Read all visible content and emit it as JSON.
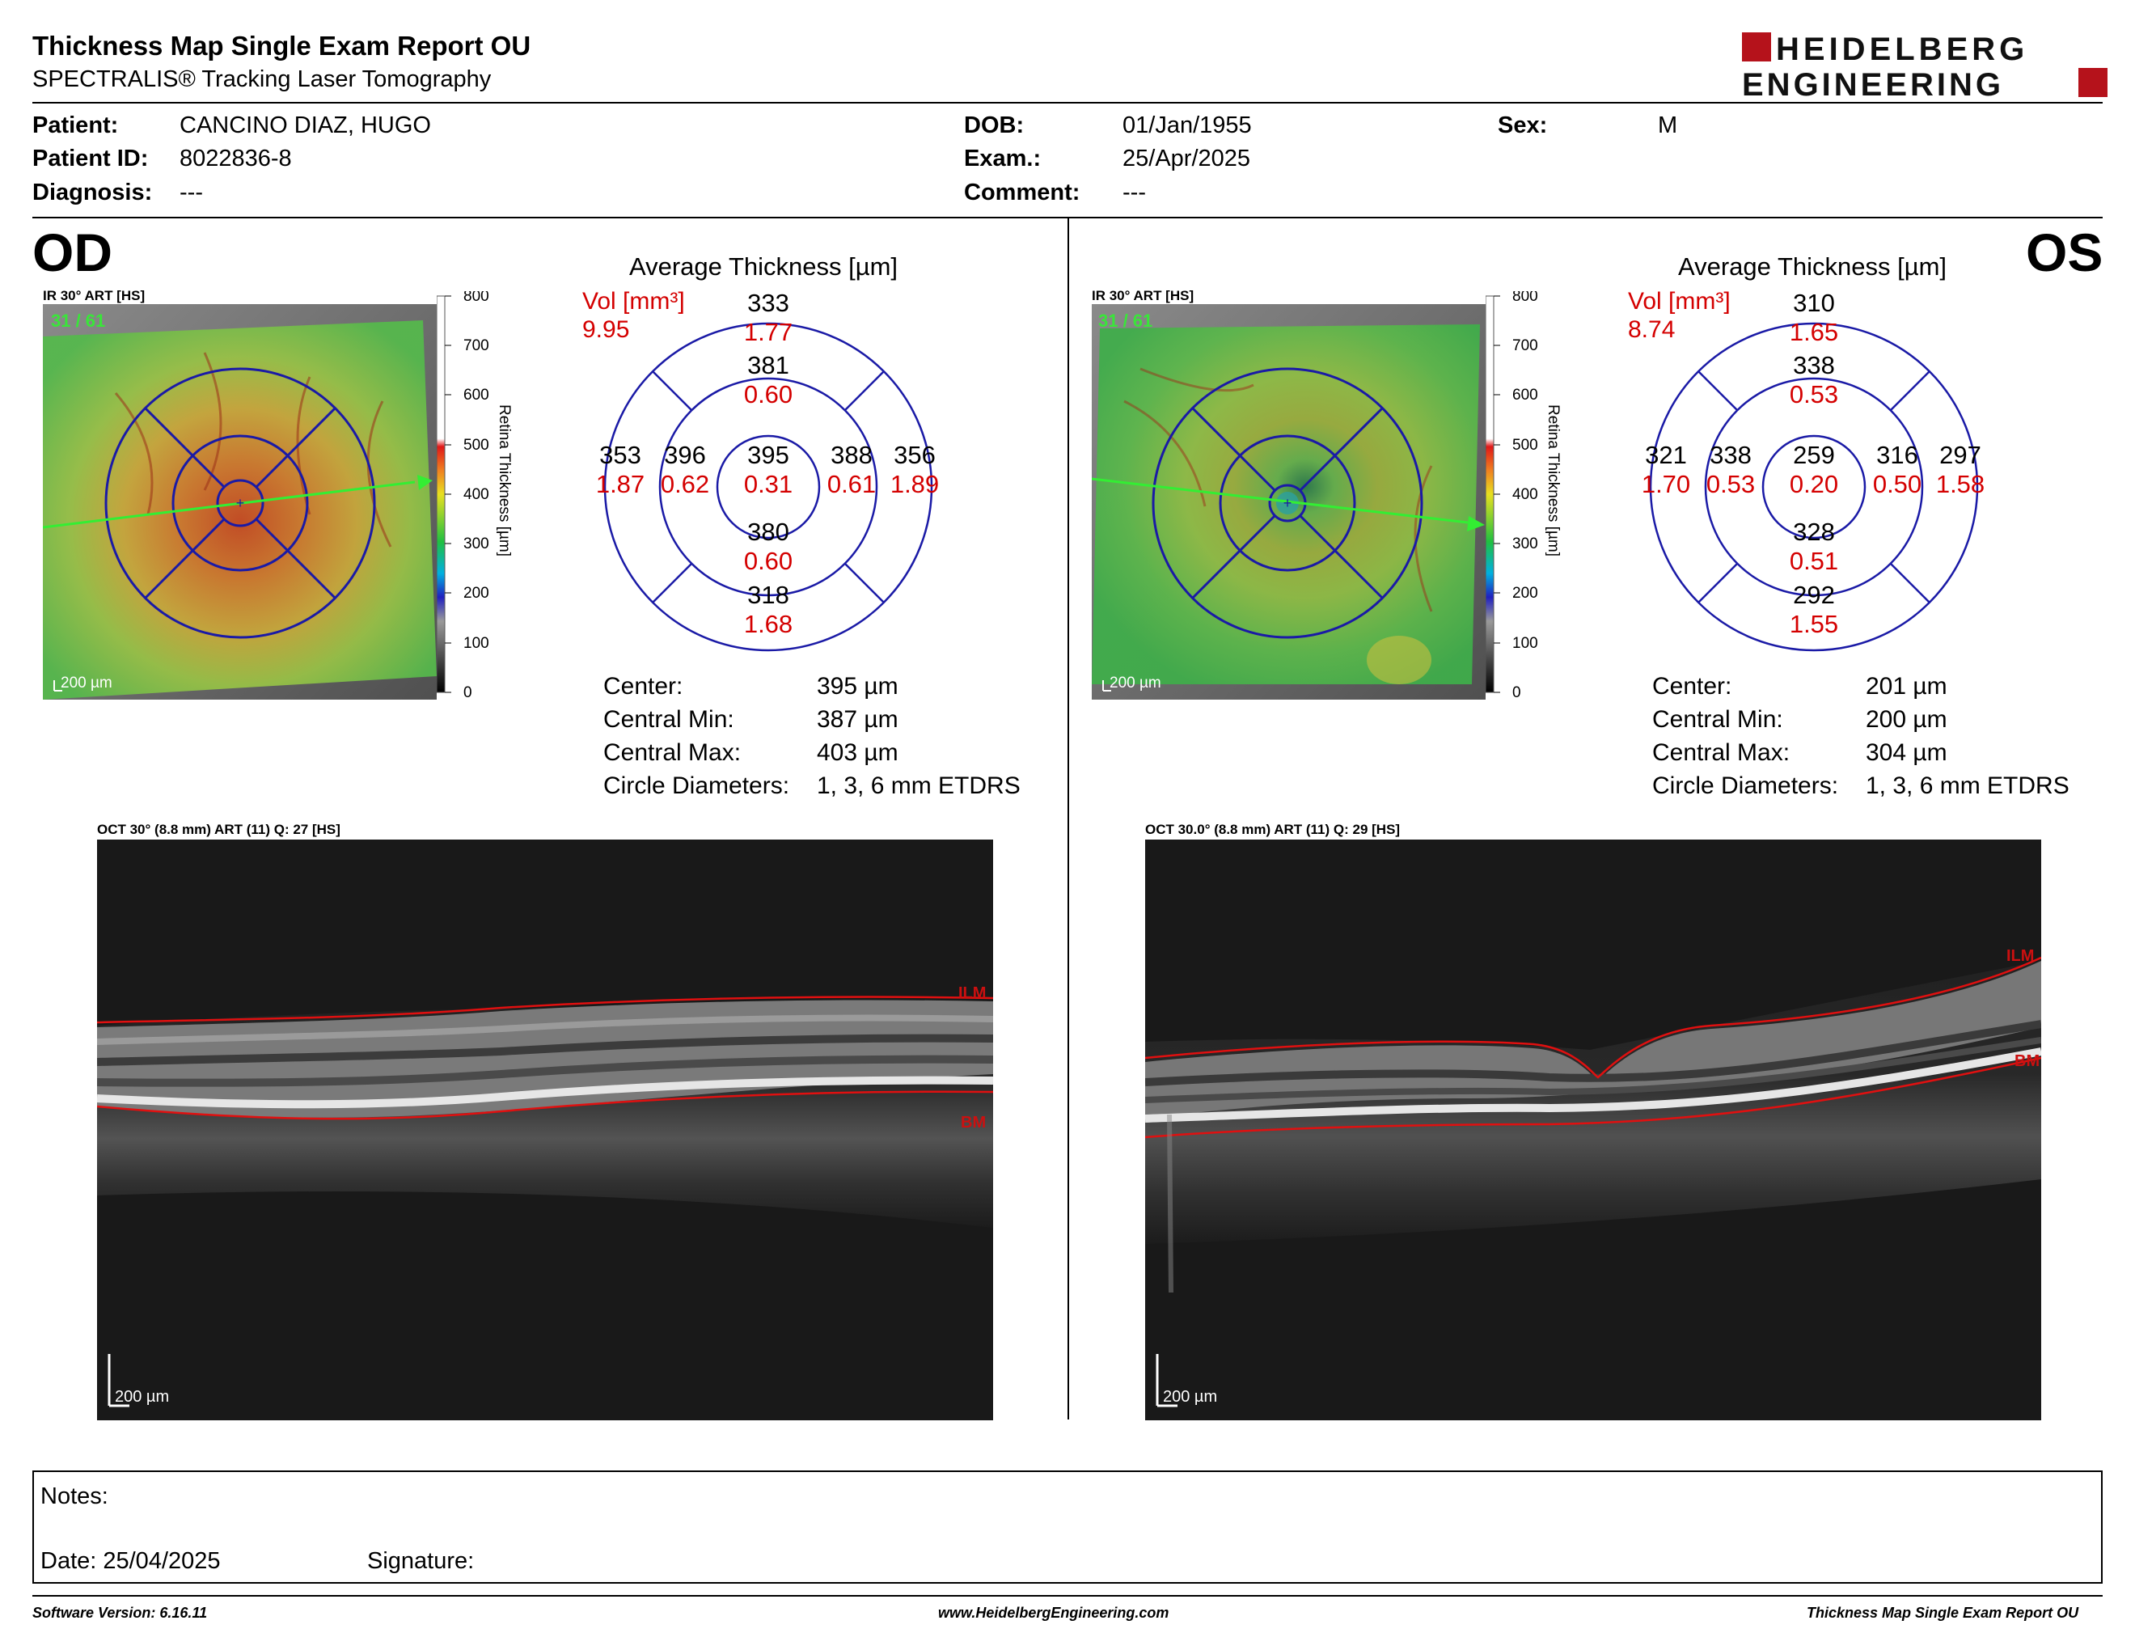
{
  "header": {
    "title": "Thickness Map Single Exam Report OU",
    "subtitle": "SPECTRALIS® Tracking Laser Tomography",
    "logo_line1": "HEIDELBERG",
    "logo_line2": "ENGINEERING"
  },
  "patient": {
    "patient_label": "Patient:",
    "patient_value": "CANCINO DIAZ, HUGO",
    "id_label": "Patient ID:",
    "id_value": "8022836-8",
    "diagnosis_label": "Diagnosis:",
    "diagnosis_value": "---",
    "dob_label": "DOB:",
    "dob_value": "01/Jan/1955",
    "exam_label": "Exam.:",
    "exam_value": "25/Apr/2025",
    "comment_label": "Comment:",
    "comment_value": "---",
    "sex_label": "Sex:",
    "sex_value": "M"
  },
  "colorbar": {
    "ticks": [
      "800",
      "700",
      "600",
      "500",
      "400",
      "300",
      "200",
      "100",
      "0"
    ],
    "label": "Retina  Thickness [µm]"
  },
  "od": {
    "eye": "OD",
    "ir_caption": "IR 30° ART [HS]",
    "ir_count": "31 / 61",
    "ir_scale": "200 µm",
    "avg_title": "Average Thickness [µm]",
    "vol_label": "Vol [mm³]",
    "vol_value": "9.95",
    "sectors": {
      "center": {
        "t": "395",
        "v": "0.31"
      },
      "inner_sup": {
        "t": "381",
        "v": "0.60"
      },
      "inner_inf": {
        "t": "380",
        "v": "0.60"
      },
      "inner_left": {
        "t": "396",
        "v": "0.62"
      },
      "inner_right": {
        "t": "388",
        "v": "0.61"
      },
      "outer_sup": {
        "t": "333",
        "v": "1.77"
      },
      "outer_inf": {
        "t": "318",
        "v": "1.68"
      },
      "outer_left": {
        "t": "353",
        "v": "1.87"
      },
      "outer_right": {
        "t": "356",
        "v": "1.89"
      }
    },
    "stats": {
      "center_label": "Center:",
      "center_value": "395 µm",
      "min_label": "Central Min:",
      "min_value": "387 µm",
      "max_label": "Central Max:",
      "max_value": "403 µm",
      "diam_label": "Circle Diameters:",
      "diam_value": "1, 3, 6 mm ETDRS"
    },
    "oct_caption": "OCT 30° (8.8 mm) ART (11) Q: 27 [HS]",
    "oct_ilm": "ILM",
    "oct_bm": "BM",
    "oct_scale": "200 µm"
  },
  "os": {
    "eye": "OS",
    "ir_caption": "IR 30° ART [HS]",
    "ir_count": "31 / 61",
    "ir_scale": "200 µm",
    "avg_title": "Average Thickness [µm]",
    "vol_label": "Vol [mm³]",
    "vol_value": "8.74",
    "sectors": {
      "center": {
        "t": "259",
        "v": "0.20"
      },
      "inner_sup": {
        "t": "338",
        "v": "0.53"
      },
      "inner_inf": {
        "t": "328",
        "v": "0.51"
      },
      "inner_left": {
        "t": "338",
        "v": "0.53"
      },
      "inner_right": {
        "t": "316",
        "v": "0.50"
      },
      "outer_sup": {
        "t": "310",
        "v": "1.65"
      },
      "outer_inf": {
        "t": "292",
        "v": "1.55"
      },
      "outer_left": {
        "t": "321",
        "v": "1.70"
      },
      "outer_right": {
        "t": "297",
        "v": "1.58"
      }
    },
    "stats": {
      "center_label": "Center:",
      "center_value": "201 µm",
      "min_label": "Central Min:",
      "min_value": "200 µm",
      "max_label": "Central Max:",
      "max_value": "304 µm",
      "diam_label": "Circle Diameters:",
      "diam_value": "1, 3, 6 mm ETDRS"
    },
    "oct_caption": "OCT 30.0° (8.8 mm) ART (11) Q: 29 [HS]",
    "oct_ilm": "ILM",
    "oct_bm": "BM",
    "oct_scale": "200 µm"
  },
  "notes": {
    "notes_label": "Notes:",
    "date_label": "Date: 25/04/2025",
    "signature_label": "Signature:"
  },
  "footer": {
    "software": "Software Version: 6.16.11",
    "website": "www.HeidelbergEngineering.com",
    "report": "Thickness Map Single Exam Report OU"
  },
  "colors": {
    "ring": "#1a1aa6",
    "volume_red": "#d40000",
    "logo_red": "#b5121b",
    "green_text": "#39e639",
    "layer_red": "#e01010"
  }
}
